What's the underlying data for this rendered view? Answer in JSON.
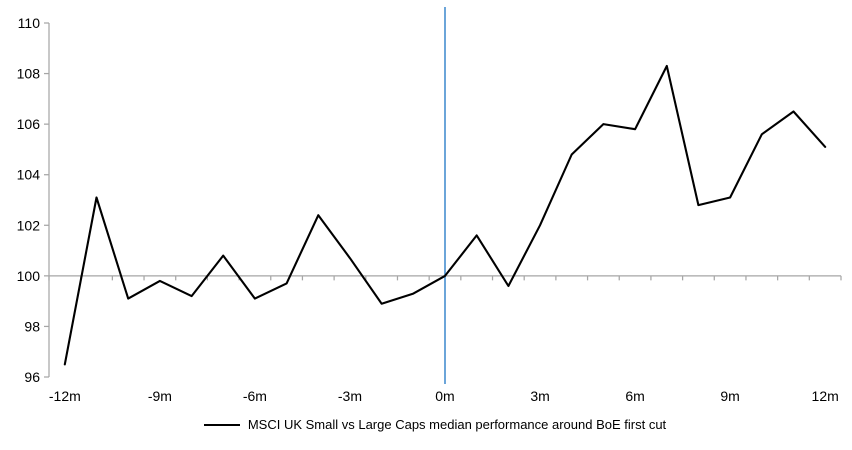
{
  "chart_data": {
    "type": "line",
    "title": "",
    "xlabel": "",
    "ylabel": "",
    "x_months": [
      -12,
      -11,
      -10,
      -9,
      -8,
      -7,
      -6,
      -5,
      -4,
      -3,
      -2,
      -1,
      0,
      1,
      2,
      3,
      4,
      5,
      6,
      7,
      8,
      9,
      10,
      11,
      12
    ],
    "series": [
      {
        "name": "MSCI UK Small vs Large Caps median performance around BoE first cut",
        "color": "#000000",
        "values": [
          96.5,
          103.1,
          99.1,
          99.8,
          99.2,
          100.8,
          99.1,
          99.7,
          102.4,
          100.7,
          98.9,
          99.3,
          100.0,
          101.6,
          99.6,
          102.0,
          104.8,
          106.0,
          105.8,
          108.3,
          102.8,
          103.1,
          105.6,
          106.5,
          105.1
        ]
      }
    ],
    "ylim": [
      96,
      110
    ],
    "y_ticks": [
      96,
      98,
      100,
      102,
      104,
      106,
      108,
      110
    ],
    "x_tick_months": [
      -12,
      -9,
      -6,
      -3,
      0,
      3,
      6,
      9,
      12
    ],
    "x_tick_labels": [
      "-12m",
      "-9m",
      "-6m",
      "-3m",
      "0m",
      "3m",
      "6m",
      "9m",
      "12m"
    ],
    "xlim_months": [
      -12.5,
      12.5
    ],
    "baseline_value": 100,
    "grid": "baseline-only",
    "event_line": {
      "month": 0,
      "color": "#5b9bd5"
    },
    "axis_color": "#a6a6a6",
    "legend": {
      "position": "bottom-center",
      "label": "MSCI UK Small vs Large Caps median performance around BoE first cut"
    }
  }
}
